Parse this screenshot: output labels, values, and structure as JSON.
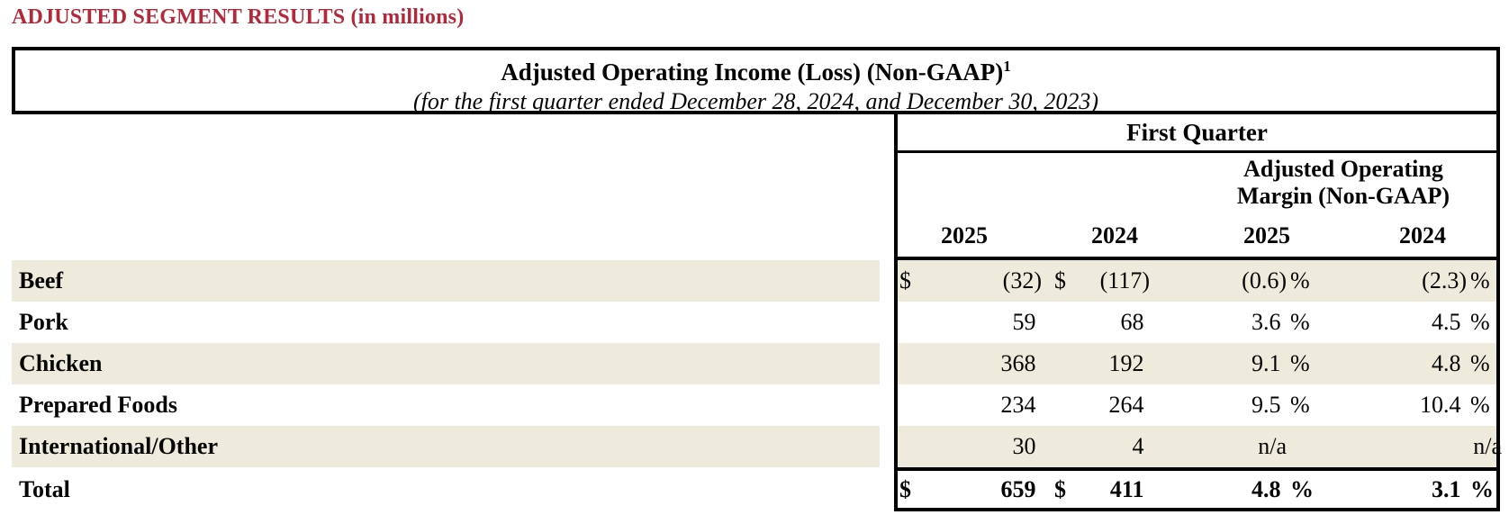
{
  "colors": {
    "heading_red": "#b3293a",
    "row_stripe_beige": "#eeeadc",
    "border_black": "#000000"
  },
  "page_heading": "ADJUSTED SEGMENT RESULTS (in millions)",
  "table": {
    "title": "Adjusted Operating Income (Loss) (Non-GAAP)",
    "title_footnote_marker": "1",
    "subtitle": "(for the first quarter ended December 28, 2024, and December 30, 2023)",
    "period_header": "First Quarter",
    "margin_header_line1": "Adjusted Operating",
    "margin_header_line2": "Margin (Non-GAAP)",
    "year_headers": [
      "2025",
      "2024",
      "2025",
      "2024"
    ],
    "rows": [
      {
        "segment": "Beef",
        "cur1": "$",
        "income_2025": "(32)",
        "cur2": "$",
        "income_2024": "(117)",
        "margin_2025": "(0.6)",
        "pct1": "%",
        "margin_2024": "(2.3)",
        "pct2": "%"
      },
      {
        "segment": "Pork",
        "cur1": "",
        "income_2025": "59 ",
        "cur2": "",
        "income_2024": "68 ",
        "margin_2025": "3.6 ",
        "pct1": "%",
        "margin_2024": "4.5 ",
        "pct2": "%"
      },
      {
        "segment": "Chicken",
        "cur1": "",
        "income_2025": "368 ",
        "cur2": "",
        "income_2024": "192 ",
        "margin_2025": "9.1 ",
        "pct1": "%",
        "margin_2024": "4.8 ",
        "pct2": "%"
      },
      {
        "segment": "Prepared Foods",
        "cur1": "",
        "income_2025": "234 ",
        "cur2": "",
        "income_2024": "264 ",
        "margin_2025": "9.5 ",
        "pct1": "%",
        "margin_2024": "10.4 ",
        "pct2": "%"
      },
      {
        "segment": "International/Other",
        "cur1": "",
        "income_2025": "30 ",
        "cur2": "",
        "income_2024": "4 ",
        "margin_2025": "n/a",
        "pct1": "",
        "margin_2024": "n/a",
        "pct2": ""
      }
    ],
    "total": {
      "segment": "Total",
      "cur1": "$",
      "income_2025": "659 ",
      "cur2": "$",
      "income_2024": "411 ",
      "margin_2025": "4.8 ",
      "pct1": "%",
      "margin_2024": "3.1 ",
      "pct2": "%"
    }
  }
}
